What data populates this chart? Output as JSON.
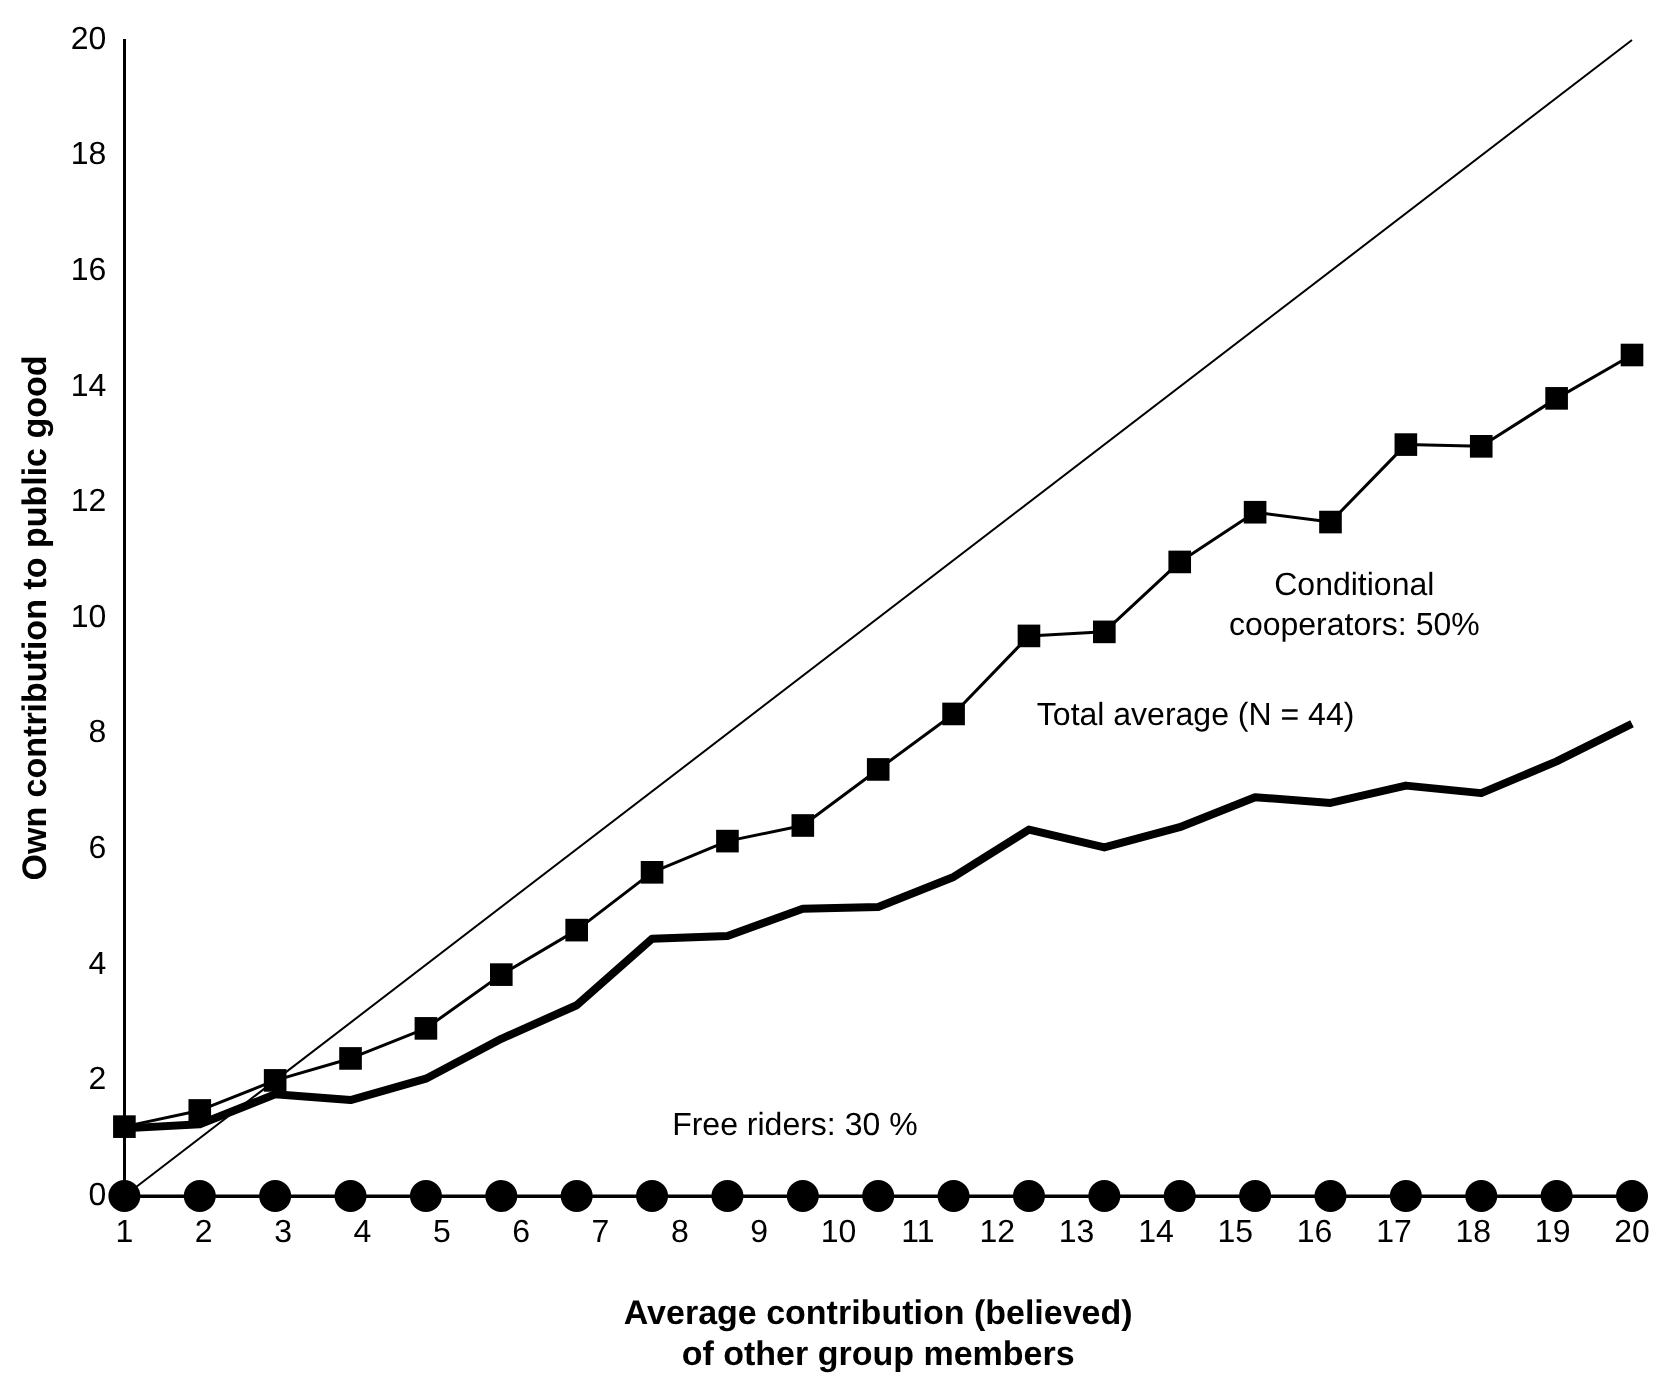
{
  "chart_data": {
    "type": "line",
    "xlabel": "Average contribution (believed)\nof other group members",
    "ylabel": "Own contribution to public good",
    "xlim": [
      1,
      20
    ],
    "xticks": [
      1,
      2,
      3,
      4,
      5,
      6,
      7,
      8,
      9,
      10,
      11,
      12,
      13,
      14,
      15,
      16,
      17,
      18,
      19,
      20
    ],
    "ylim": [
      0,
      20
    ],
    "yticks": [
      0,
      2,
      4,
      6,
      8,
      10,
      12,
      14,
      16,
      18,
      20
    ],
    "grid": false,
    "legend": false,
    "series": [
      {
        "color": "#000000",
        "line_style": "solid",
        "x": [
          1,
          20
        ],
        "values": [
          0,
          20
        ]
      },
      {
        "color": "#000000",
        "marker": "square",
        "x": [
          1,
          1.95,
          2.9,
          3.85,
          4.8,
          5.75,
          6.7,
          7.65,
          8.6,
          9.55,
          10.5,
          11.45,
          12.4,
          13.35,
          14.3,
          15.25,
          16.2,
          17.15,
          18.1,
          19.05,
          20
        ],
        "values": [
          1.2,
          1.48,
          2.0,
          2.38,
          2.9,
          3.83,
          4.6,
          5.6,
          6.14,
          6.41,
          7.38,
          8.34,
          9.69,
          9.76,
          10.97,
          11.83,
          11.66,
          13.0,
          12.97,
          13.8,
          14.55
        ]
      },
      {
        "color": "#000000",
        "x": [
          1,
          1.95,
          2.9,
          3.85,
          4.8,
          5.75,
          6.7,
          7.65,
          8.6,
          9.55,
          10.5,
          11.45,
          12.4,
          13.35,
          14.3,
          15.25,
          16.2,
          17.15,
          18.1,
          19.05,
          20
        ],
        "values": [
          1.17,
          1.24,
          1.76,
          1.66,
          2.03,
          2.72,
          3.3,
          4.45,
          4.5,
          4.97,
          5.0,
          5.52,
          6.34,
          6.03,
          6.38,
          6.9,
          6.8,
          7.1,
          6.97,
          7.52,
          8.17
        ]
      },
      {
        "color": "#000000",
        "marker": "circle",
        "x": [
          1,
          1.95,
          2.9,
          3.85,
          4.8,
          5.75,
          6.7,
          7.65,
          8.6,
          9.55,
          10.5,
          11.45,
          12.4,
          13.35,
          14.3,
          15.25,
          16.2,
          17.15,
          18.1,
          19.05,
          20
        ],
        "values": [
          0,
          0,
          0,
          0,
          0,
          0,
          0,
          0,
          0,
          0,
          0,
          0,
          0,
          0,
          0,
          0,
          0,
          0,
          0,
          0,
          0
        ]
      }
    ],
    "annotations": [
      "Conditional\ncooperators: 50%",
      "Total average (N = 44)",
      "Free riders: 30 %"
    ]
  }
}
